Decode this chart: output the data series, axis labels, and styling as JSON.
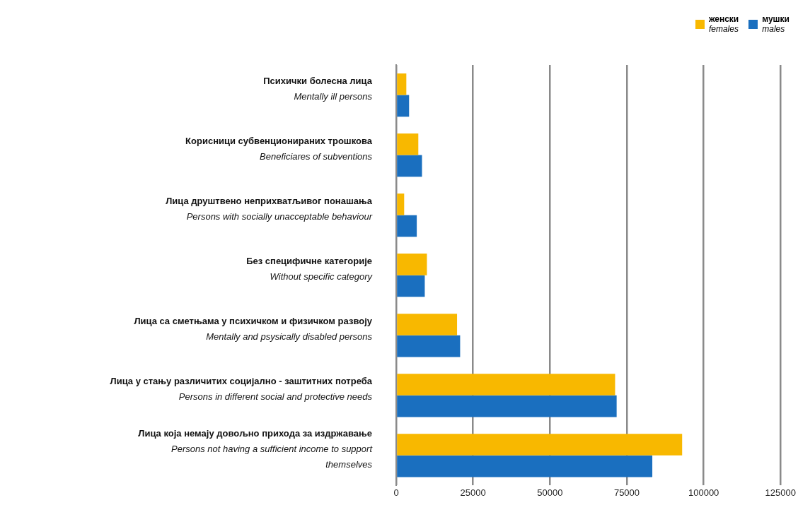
{
  "chart_data": {
    "type": "bar",
    "orientation": "horizontal",
    "categories": [
      "Психички болесна лица\nMentally ill persons",
      "Корисници субвенционираних трошкова\nBeneficiares of subventions",
      "Лица друштвено неприхватљивог понашања\nPersons with socially unacceptable behaviour",
      "Без специфичне категорије\nWithout specific category",
      "Лица са сметњама у психичком и физичком развоју\nMentally and psysically disabled persons",
      "Лица у стању различитих социјално - заштитних потреба\nPersons in different social and protective needs",
      "Лица која немају довољно прихода за издржавање\nPersons not having a sufficient income to support\nthemselves"
    ],
    "series": [
      {
        "name": "женски\nfemales",
        "color": "#f8b800",
        "values": [
          3300,
          7200,
          2600,
          10000,
          19800,
          71200,
          93000
        ]
      },
      {
        "name": "мушки\nmales",
        "color": "#1a6fbf",
        "values": [
          4200,
          8400,
          6700,
          9300,
          20800,
          71700,
          83300
        ]
      }
    ],
    "xlim": [
      0,
      125000
    ],
    "xticks": [
      0,
      25000,
      50000,
      75000,
      100000,
      125000
    ],
    "grid": "x",
    "legend": "top right"
  }
}
